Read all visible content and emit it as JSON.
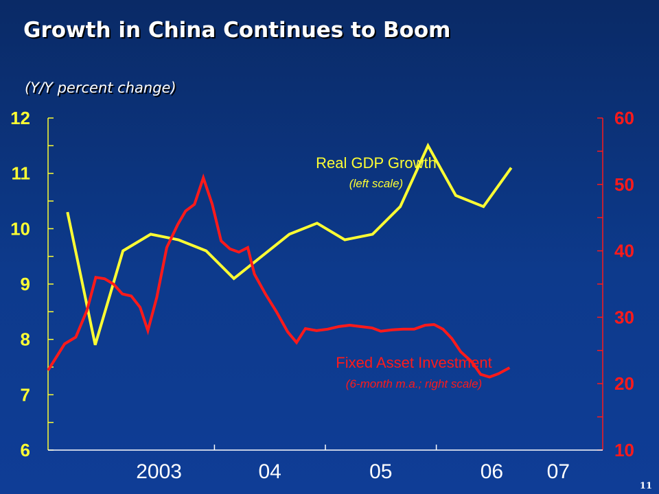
{
  "slide": {
    "title": "Growth in China Continues to Boom",
    "subtitle": "(Y/Y percent change)",
    "page_number": "11"
  },
  "colors": {
    "gdp": "#ffff33",
    "fai": "#ff1a1a",
    "axis_left": "#ffff33",
    "axis_right": "#ff1a1a",
    "axis_bottom": "#ffffff"
  },
  "chart_data": {
    "type": "line",
    "title": "Growth in China Continues to Boom",
    "subtitle": "(Y/Y percent change)",
    "x_ticks": [
      {
        "label": "2003",
        "x": 2003.2
      },
      {
        "label": "04",
        "x": 2004.2
      },
      {
        "label": "05",
        "x": 2005.2
      },
      {
        "label": "06",
        "x": 2006.2
      },
      {
        "label": "07",
        "x": 2006.8
      }
    ],
    "x_boundaries": [
      2003.7,
      2004.7,
      2005.7
    ],
    "xlim": [
      2002.2,
      2007.2
    ],
    "y_left": {
      "lim": [
        6,
        12
      ],
      "ticks": [
        "6",
        "7",
        "8",
        "9",
        "10",
        "11",
        "12"
      ]
    },
    "y_right": {
      "lim": [
        10,
        60
      ],
      "ticks": [
        "10",
        "20",
        "30",
        "40",
        "50",
        "60"
      ]
    },
    "series": [
      {
        "name": "Real GDP Growth",
        "note": "(left scale)",
        "axis": "left",
        "points": [
          [
            2002.375,
            10.3
          ],
          [
            2002.625,
            7.9
          ],
          [
            2002.875,
            9.6
          ],
          [
            2003.125,
            9.9
          ],
          [
            2003.375,
            9.8
          ],
          [
            2003.625,
            9.6
          ],
          [
            2003.875,
            9.1
          ],
          [
            2004.125,
            9.5
          ],
          [
            2004.375,
            9.9
          ],
          [
            2004.625,
            10.1
          ],
          [
            2004.875,
            9.8
          ],
          [
            2005.125,
            9.9
          ],
          [
            2005.375,
            10.4
          ],
          [
            2005.625,
            11.5
          ],
          [
            2005.875,
            10.6
          ],
          [
            2006.125,
            10.4
          ],
          [
            2006.375,
            11.1
          ]
        ]
      },
      {
        "name": "Fixed Asset Investment",
        "note": "(6-month m.a.; right scale)",
        "axis": "right",
        "points": [
          [
            2002.2,
            22.0
          ],
          [
            2002.35,
            26.0
          ],
          [
            2002.45,
            27.0
          ],
          [
            2002.55,
            31.0
          ],
          [
            2002.63,
            36.0
          ],
          [
            2002.71,
            35.8
          ],
          [
            2002.79,
            35.0
          ],
          [
            2002.87,
            33.5
          ],
          [
            2002.95,
            33.2
          ],
          [
            2003.03,
            31.5
          ],
          [
            2003.1,
            28.0
          ],
          [
            2003.18,
            33.0
          ],
          [
            2003.27,
            40.5
          ],
          [
            2003.37,
            44.0
          ],
          [
            2003.44,
            46.0
          ],
          [
            2003.52,
            47.0
          ],
          [
            2003.6,
            51.0
          ],
          [
            2003.68,
            47.0
          ],
          [
            2003.76,
            41.5
          ],
          [
            2003.84,
            40.3
          ],
          [
            2003.92,
            39.8
          ],
          [
            2004.0,
            40.5
          ],
          [
            2004.06,
            36.5
          ],
          [
            2004.16,
            33.5
          ],
          [
            2004.26,
            30.8
          ],
          [
            2004.36,
            27.8
          ],
          [
            2004.44,
            26.2
          ],
          [
            2004.52,
            28.3
          ],
          [
            2004.62,
            28.0
          ],
          [
            2004.72,
            28.2
          ],
          [
            2004.82,
            28.6
          ],
          [
            2004.92,
            28.8
          ],
          [
            2005.02,
            28.6
          ],
          [
            2005.12,
            28.4
          ],
          [
            2005.2,
            27.9
          ],
          [
            2005.3,
            28.1
          ],
          [
            2005.4,
            28.2
          ],
          [
            2005.5,
            28.2
          ],
          [
            2005.6,
            28.8
          ],
          [
            2005.68,
            28.9
          ],
          [
            2005.76,
            28.2
          ],
          [
            2005.84,
            26.8
          ],
          [
            2005.92,
            24.8
          ],
          [
            2006.02,
            23.3
          ],
          [
            2006.1,
            21.4
          ],
          [
            2006.18,
            21.0
          ],
          [
            2006.26,
            21.5
          ],
          [
            2006.36,
            22.4
          ]
        ]
      }
    ],
    "annotations": [
      {
        "text": "Real GDP Growth",
        "sub": "(left scale)",
        "near": "yellow line peak"
      },
      {
        "text": "Fixed Asset Investment",
        "sub": "(6-month m.a.; right scale)",
        "near": "red line end"
      }
    ],
    "grid": false
  }
}
